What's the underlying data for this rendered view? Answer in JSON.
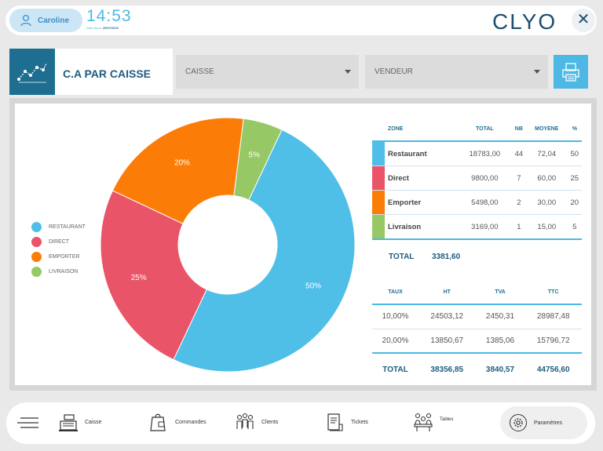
{
  "topbar": {
    "user_name": "Caroline",
    "time": "14:53",
    "date_prefix": "Date fiscal, ",
    "date": "29/07/2022",
    "logo": "CLYO",
    "close_icon": "close-icon"
  },
  "header": {
    "title": "C.A PAR CAISSE",
    "caisse_select": "CAISSE",
    "vendeur_select": "VENDEUR"
  },
  "legend": [
    {
      "label": "RESTAURANT",
      "color": "#4fbfe8"
    },
    {
      "label": "DIRECT",
      "color": "#ea5468"
    },
    {
      "label": "EMPORTER",
      "color": "#fb7d07"
    },
    {
      "label": "LIVRAISON",
      "color": "#97c866"
    }
  ],
  "chart_data": {
    "type": "pie",
    "categories": [
      "RESTAURANT",
      "DIRECT",
      "EMPORTER",
      "LIVRAISON"
    ],
    "values": [
      50,
      25,
      20,
      5
    ],
    "labels": [
      "50%",
      "25%",
      "20%",
      "5%"
    ],
    "colors": [
      "#4fbfe8",
      "#ea5468",
      "#fb7d07",
      "#97c866"
    ]
  },
  "zones_table": {
    "headers": [
      "ZONE",
      "TOTAL",
      "NB",
      "MOYENE",
      "%"
    ],
    "rows": [
      {
        "zone": "Restaurant",
        "total": "18783,00",
        "nb": "44",
        "moyene": "72,04",
        "pct": "50",
        "color": "#4fbfe8"
      },
      {
        "zone": "Direct",
        "total": "9800,00",
        "nb": "7",
        "moyene": "60,00",
        "pct": "25",
        "color": "#ea5468"
      },
      {
        "zone": "Emporter",
        "total": "5498,00",
        "nb": "2",
        "moyene": "30,00",
        "pct": "20",
        "color": "#fb7d07"
      },
      {
        "zone": "Livraison",
        "total": "3169,00",
        "nb": "1",
        "moyene": "15,00",
        "pct": "5",
        "color": "#97c866"
      }
    ],
    "total_label": "TOTAL",
    "total_value": "3381,60"
  },
  "tax_table": {
    "headers": [
      "TAUX",
      "HT",
      "TVA",
      "TTC"
    ],
    "rows": [
      {
        "taux": "10,00%",
        "ht": "24503,12",
        "tva": "2450,31",
        "ttc": "28987,48"
      },
      {
        "taux": "20,00%",
        "ht": "13850,67",
        "tva": "1385,06",
        "ttc": "15796,72"
      }
    ],
    "total": {
      "label": "TOTAL",
      "ht": "38356,85",
      "tva": "3840,57",
      "ttc": "44756,60"
    }
  },
  "bottombar": {
    "nav": [
      "Caisse",
      "Commandes",
      "Clients",
      "Tickets",
      "Tables"
    ],
    "params": "Paramètres"
  }
}
